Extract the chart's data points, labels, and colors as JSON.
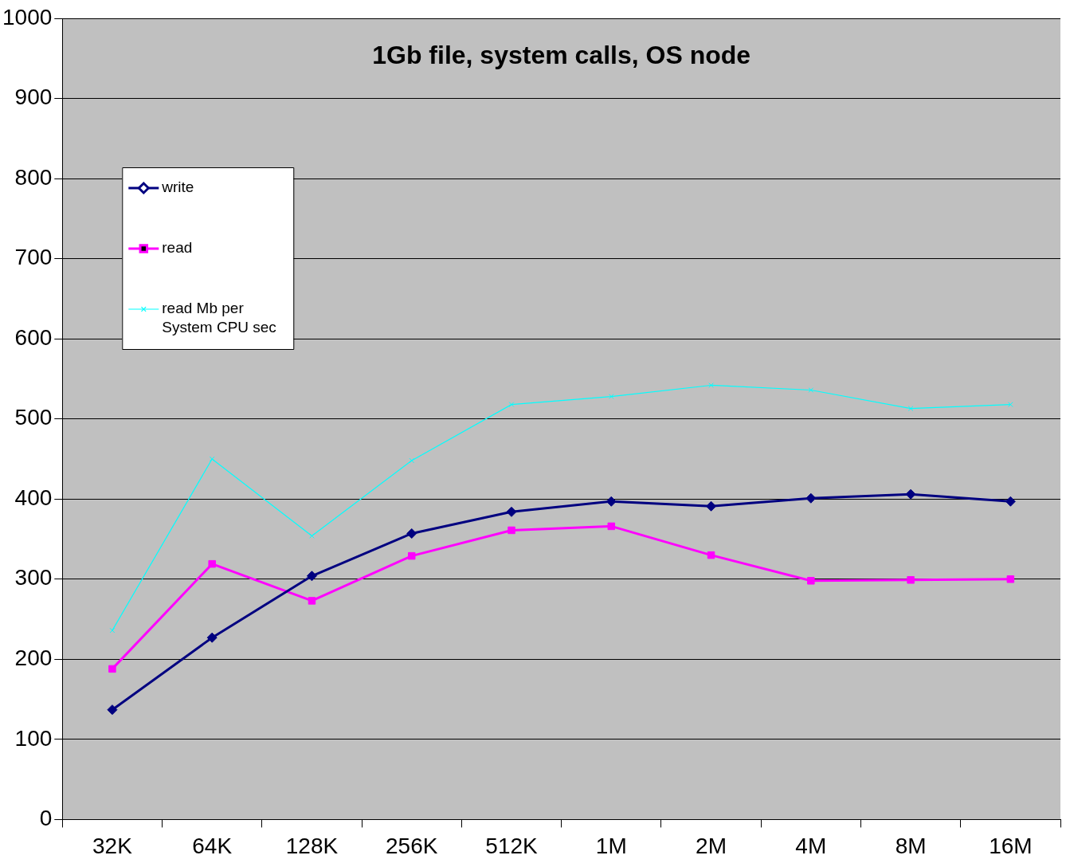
{
  "chart_data": {
    "type": "line",
    "title": "1Gb file, system calls, OS node",
    "categories": [
      "32K",
      "64K",
      "128K",
      "256K",
      "512K",
      "1M",
      "2M",
      "4M",
      "8M",
      "16M"
    ],
    "series": [
      {
        "name": "write",
        "color": "#000080",
        "marker": "diamond",
        "values": [
          137,
          227,
          304,
          357,
          384,
          397,
          391,
          401,
          406,
          397
        ]
      },
      {
        "name": "read",
        "color": "#ff00ff",
        "marker": "square",
        "values": [
          188,
          319,
          273,
          329,
          361,
          366,
          330,
          298,
          299,
          300
        ]
      },
      {
        "name": "read Mb per System CPU sec",
        "color": "#00ffff",
        "marker": "cross",
        "values": [
          236,
          450,
          354,
          448,
          518,
          528,
          542,
          536,
          513,
          518
        ]
      }
    ],
    "ylim": [
      0,
      1000
    ],
    "yticks": [
      0,
      100,
      200,
      300,
      400,
      500,
      600,
      700,
      800,
      900,
      1000
    ],
    "grid": "y",
    "legend": "top left",
    "line_style": "solid"
  }
}
